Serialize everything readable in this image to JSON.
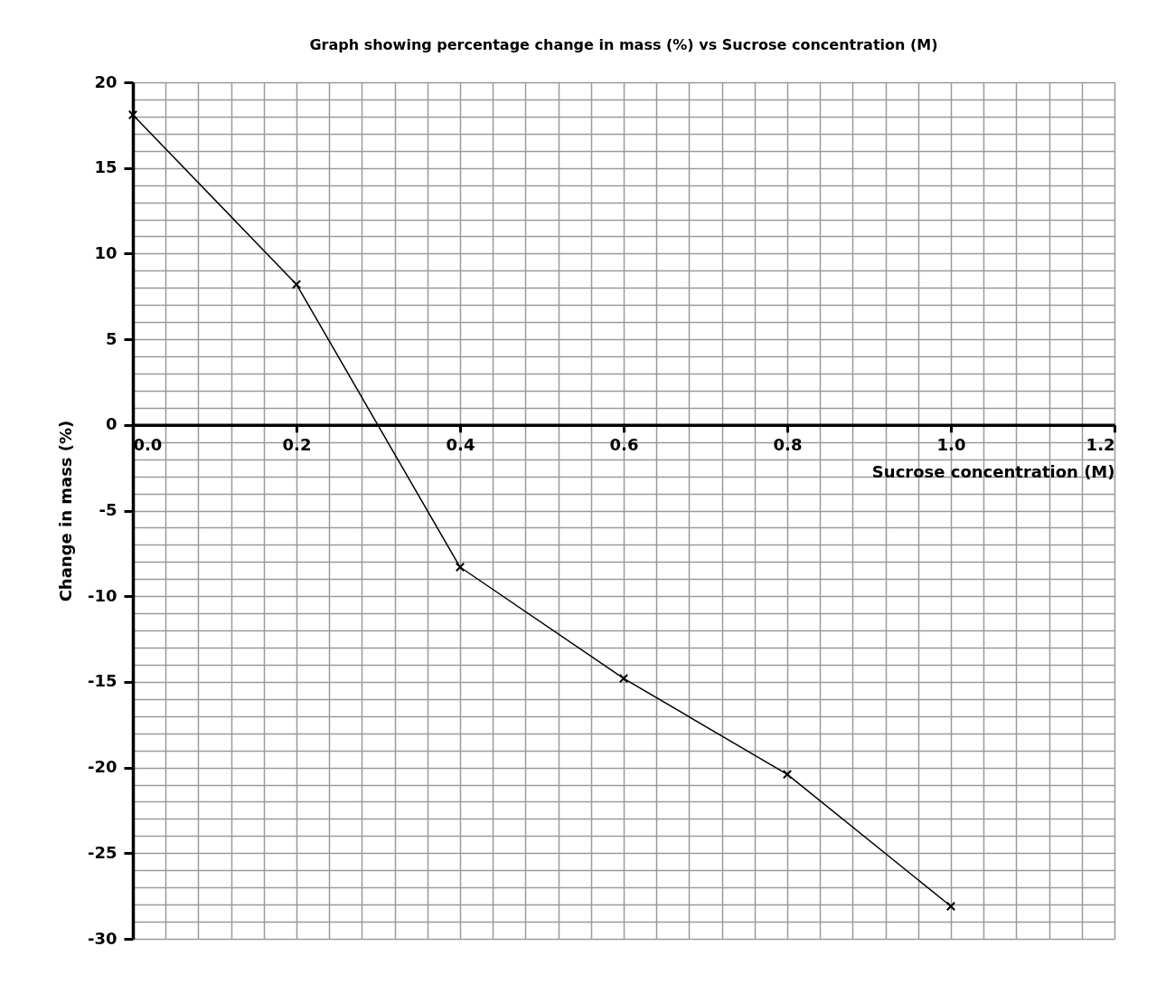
{
  "chart_data": {
    "type": "line",
    "title": "Graph showing percentage change in mass (%) vs Sucrose concentration (M)",
    "xlabel": "Sucrose concentration (M)",
    "ylabel": "Change in mass (%)",
    "x": [
      0,
      0.2,
      0.4,
      0.6,
      0.8,
      1.0
    ],
    "series": [
      {
        "color": "#000000",
        "values": [
          18.1,
          8.2,
          -8.3,
          -14.8,
          -20.4,
          -28.1
        ]
      }
    ],
    "xlim": [
      0,
      1.2
    ],
    "xticks": [
      {
        "value": 0,
        "label": "0.0"
      },
      0.2,
      0.4,
      0.6,
      0.8,
      {
        "value": 1.0,
        "label": "1.0"
      },
      1.2
    ],
    "ylim": [
      -30,
      20
    ],
    "yticks": [
      20,
      15,
      10,
      5,
      0,
      -5,
      -10,
      -15,
      -20,
      -25,
      -30
    ],
    "grid": true,
    "marker": "cross",
    "line_style": "solid"
  }
}
